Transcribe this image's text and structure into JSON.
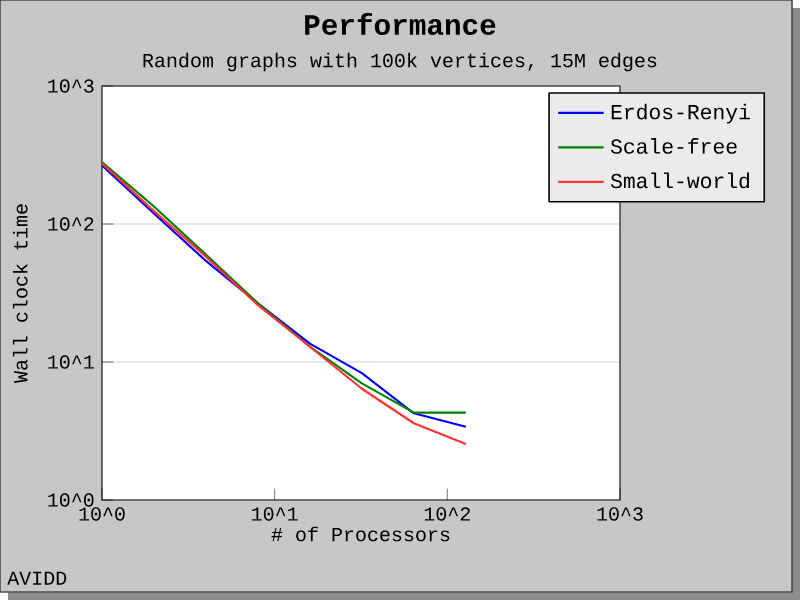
{
  "chart_data": {
    "type": "line",
    "title": "Performance",
    "subtitle": "Random graphs with 100k vertices, 15M edges",
    "xlabel": "# of Processors",
    "ylabel": "Wall clock time",
    "x": [
      1,
      2,
      4,
      8,
      16,
      32,
      64,
      128
    ],
    "series": [
      {
        "name": "Erdos-Renyi",
        "color": "#0000ff",
        "values": [
          266,
          119,
          54,
          26.6,
          13.6,
          8.3,
          4.25,
          3.4
        ]
      },
      {
        "name": "Scale-free",
        "color": "#008000",
        "values": [
          281,
          134,
          60,
          26.6,
          12.9,
          7.0,
          4.3,
          4.3
        ]
      },
      {
        "name": "Small-world",
        "color": "#ff3333",
        "values": [
          275,
          124,
          58,
          25.8,
          12.9,
          6.4,
          3.6,
          2.55
        ]
      }
    ],
    "log": "xy",
    "xlim": [
      1,
      1000
    ],
    "ylim": [
      1,
      1000
    ],
    "xticks": [
      {
        "value": 1,
        "label": "10^0"
      },
      {
        "value": 10,
        "label": "10^1"
      },
      {
        "value": 100,
        "label": "10^2"
      },
      {
        "value": 1000,
        "label": "10^3"
      }
    ],
    "yticks": [
      {
        "value": 1,
        "label": "10^0"
      },
      {
        "value": 10,
        "label": "10^1"
      },
      {
        "value": 100,
        "label": "10^2"
      },
      {
        "value": 1000,
        "label": "10^3"
      }
    ],
    "grid": "y",
    "legend": "top right",
    "marker": "none",
    "line_style": "solid",
    "annotations": [
      "AVIDD"
    ]
  }
}
